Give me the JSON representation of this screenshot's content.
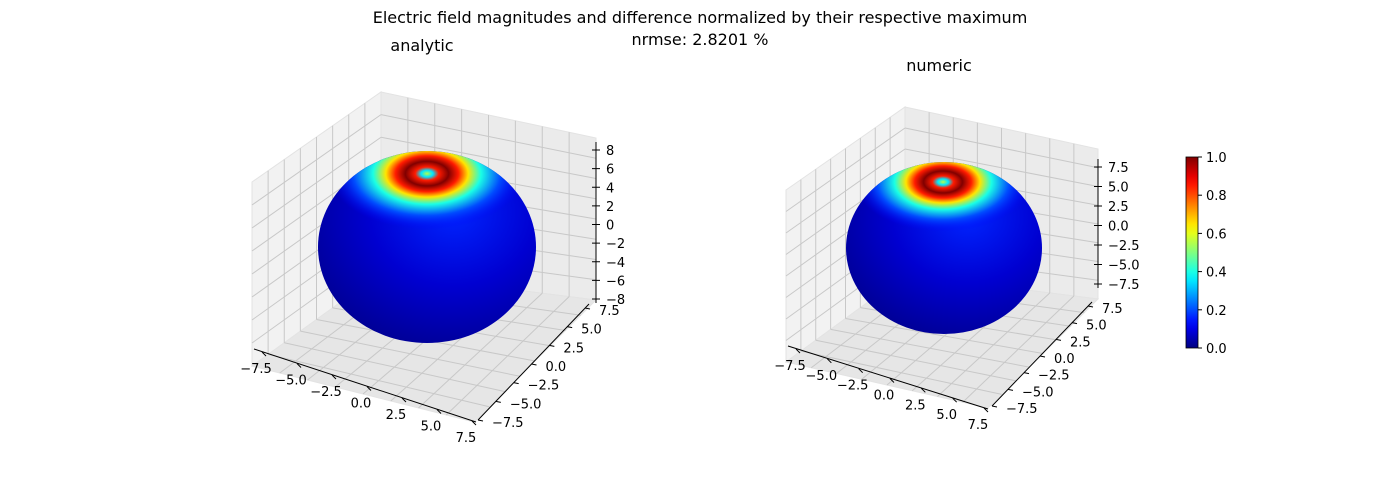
{
  "figure": {
    "title": "Electric field magnitudes and difference normalized by their respective maximum",
    "subtitle": "nrmse: 2.8201 %"
  },
  "chart_data": [
    {
      "type": "surface3d",
      "title": "analytic",
      "surface": "sphere",
      "radius": 8.75,
      "colormap": "jet",
      "hotspot": {
        "polar_angle_deg": 0,
        "peak_value": 1.0,
        "min_value": 0.0
      },
      "axes": {
        "x": {
          "ticks": [
            "−7.5",
            "−5.0",
            "−2.5",
            "0.0",
            "2.5",
            "5.0",
            "7.5"
          ]
        },
        "y": {
          "ticks": [
            "−7.5",
            "−5.0",
            "−2.5",
            "0.0",
            "2.5",
            "5.0",
            "7.5"
          ]
        },
        "z": {
          "ticks": [
            "−8",
            "−6",
            "−4",
            "−2",
            "0",
            "2",
            "4",
            "6",
            "8"
          ]
        }
      }
    },
    {
      "type": "surface3d",
      "title": "numeric",
      "surface": "sphere",
      "radius": 8.75,
      "colormap": "jet",
      "hotspot": {
        "polar_angle_deg": 0,
        "peak_value": 1.0,
        "min_value": 0.0
      },
      "axes": {
        "x": {
          "ticks": [
            "−7.5",
            "−5.0",
            "−2.5",
            "0.0",
            "2.5",
            "5.0",
            "7.5"
          ]
        },
        "y": {
          "ticks": [
            "−7.5",
            "−5.0",
            "−2.5",
            "0.0",
            "2.5",
            "5.0",
            "7.5"
          ]
        },
        "z": {
          "ticks": [
            "−7.5",
            "−5.0",
            "−2.5",
            "0.0",
            "2.5",
            "5.0",
            "7.5"
          ]
        }
      }
    }
  ],
  "colorbar": {
    "colormap": "jet",
    "min": 0.0,
    "max": 1.0,
    "ticks": [
      "0.0",
      "0.2",
      "0.4",
      "0.6",
      "0.8",
      "1.0"
    ]
  }
}
